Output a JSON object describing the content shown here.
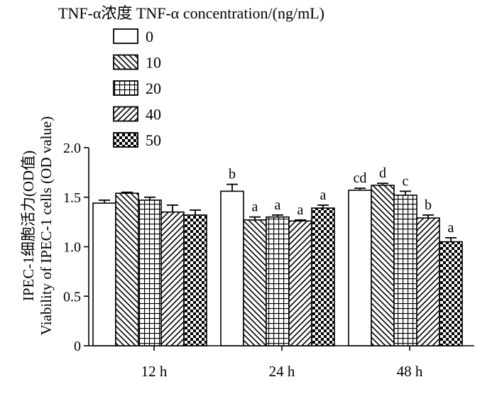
{
  "chart_data": {
    "type": "bar",
    "legend_title": "TNF-α浓度 TNF-α concentration/(ng/mL)",
    "ylabel": [
      "IPEC-1细胞活力(OD值)",
      "Viability of IPEC-1 cells (OD value)"
    ],
    "xlabel": "",
    "categories": [
      "12 h",
      "24 h",
      "48 h"
    ],
    "series": [
      {
        "name": "0",
        "pattern": "blank",
        "values": [
          1.44,
          1.56,
          1.57
        ],
        "errors": [
          0.03,
          0.07,
          0.02
        ],
        "sig": [
          "",
          "b",
          "cd"
        ]
      },
      {
        "name": "10",
        "pattern": "backslash",
        "values": [
          1.54,
          1.27,
          1.62
        ],
        "errors": [
          0.01,
          0.03,
          0.02
        ],
        "sig": [
          "",
          "a",
          "d"
        ]
      },
      {
        "name": "20",
        "pattern": "grid",
        "values": [
          1.47,
          1.3,
          1.52
        ],
        "errors": [
          0.03,
          0.02,
          0.04
        ],
        "sig": [
          "",
          "a",
          "c"
        ]
      },
      {
        "name": "40",
        "pattern": "slash",
        "values": [
          1.35,
          1.26,
          1.29
        ],
        "errors": [
          0.07,
          0.01,
          0.03
        ],
        "sig": [
          "",
          "a",
          "b"
        ]
      },
      {
        "name": "50",
        "pattern": "checker",
        "values": [
          1.32,
          1.39,
          1.05
        ],
        "errors": [
          0.05,
          0.03,
          0.04
        ],
        "sig": [
          "",
          "a",
          "a"
        ]
      }
    ],
    "ylim": [
      0,
      2.0
    ],
    "yticks": [
      "0",
      "0.5",
      "1.0",
      "1.5",
      "2.0"
    ],
    "ytick_values": [
      0,
      0.5,
      1.0,
      1.5,
      2.0
    ],
    "legend_position": "top-left",
    "grid": false
  }
}
